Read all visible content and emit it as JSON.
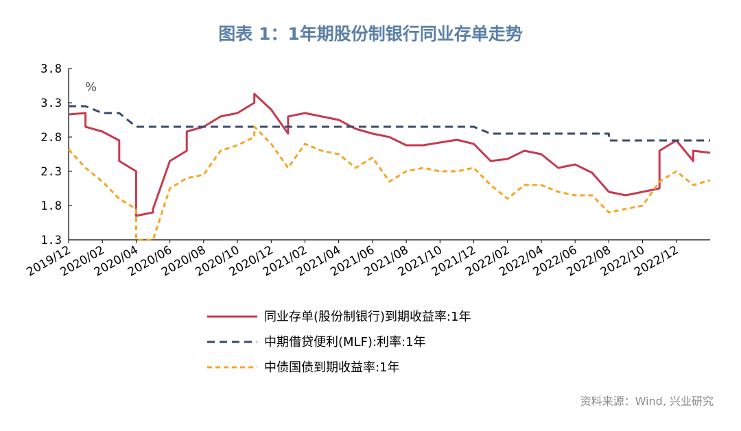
{
  "title": "图表 1：1年期股份制银行同业存单走势",
  "source": "资料来源：Wind, 兴业研究",
  "chart_data": {
    "type": "line",
    "unit_label": "%",
    "ylim": [
      1.3,
      3.8
    ],
    "yticks": [
      "3.8",
      "3.3",
      "2.8",
      "2.3",
      "1.8",
      "1.3"
    ],
    "x_tick_labels": [
      "2019/12",
      "2020/02",
      "2020/04",
      "2020/06",
      "2020/08",
      "2020/10",
      "2020/12",
      "2021/02",
      "2021/04",
      "2021/06",
      "2021/08",
      "2021/10",
      "2021/12",
      "2022/02",
      "2022/04",
      "2022/06",
      "2022/08",
      "2022/10",
      "2022/12"
    ],
    "x_start": "2019/12",
    "x_end": "2023/02",
    "legend_position": "bottom",
    "grid": false,
    "series": [
      {
        "name": "同业存单(股份制银行)到期收益率:1年",
        "color": "#c63a4f",
        "style": "solid",
        "points": [
          [
            "2019/12",
            3.13
          ],
          [
            "2020/01",
            3.15
          ],
          [
            "2020/01",
            2.95
          ],
          [
            "2020/02",
            2.88
          ],
          [
            "2020/03",
            2.75
          ],
          [
            "2020/03",
            2.45
          ],
          [
            "2020/04",
            2.3
          ],
          [
            "2020/04",
            1.65
          ],
          [
            "2020/05",
            1.7
          ],
          [
            "2020/05",
            1.75
          ],
          [
            "2020/06",
            2.45
          ],
          [
            "2020/07",
            2.6
          ],
          [
            "2020/07",
            2.88
          ],
          [
            "2020/08",
            2.95
          ],
          [
            "2020/09",
            3.1
          ],
          [
            "2020/10",
            3.15
          ],
          [
            "2020/11",
            3.3
          ],
          [
            "2020/11",
            3.43
          ],
          [
            "2020/12",
            3.2
          ],
          [
            "2021/01",
            2.85
          ],
          [
            "2021/01",
            3.1
          ],
          [
            "2021/02",
            3.15
          ],
          [
            "2021/03",
            3.1
          ],
          [
            "2021/04",
            3.05
          ],
          [
            "2021/05",
            2.92
          ],
          [
            "2021/06",
            2.85
          ],
          [
            "2021/07",
            2.8
          ],
          [
            "2021/08",
            2.68
          ],
          [
            "2021/09",
            2.68
          ],
          [
            "2021/10",
            2.72
          ],
          [
            "2021/11",
            2.76
          ],
          [
            "2021/12",
            2.7
          ],
          [
            "2022/01",
            2.45
          ],
          [
            "2022/02",
            2.48
          ],
          [
            "2022/03",
            2.6
          ],
          [
            "2022/04",
            2.55
          ],
          [
            "2022/05",
            2.35
          ],
          [
            "2022/06",
            2.4
          ],
          [
            "2022/07",
            2.28
          ],
          [
            "2022/08",
            2.0
          ],
          [
            "2022/09",
            1.95
          ],
          [
            "2022/10",
            2.0
          ],
          [
            "2022/11",
            2.05
          ],
          [
            "2022/11",
            2.6
          ],
          [
            "2022/12",
            2.75
          ],
          [
            "2023/01",
            2.45
          ],
          [
            "2023/01",
            2.6
          ],
          [
            "2023/02",
            2.57
          ]
        ]
      },
      {
        "name": "中期借贷便利(MLF):利率:1年",
        "color": "#3b4a6b",
        "style": "dashed",
        "points": [
          [
            "2019/12",
            3.25
          ],
          [
            "2020/01",
            3.25
          ],
          [
            "2020/02",
            3.15
          ],
          [
            "2020/03",
            3.15
          ],
          [
            "2020/04",
            2.95
          ],
          [
            "2021/12",
            2.95
          ],
          [
            "2022/01",
            2.85
          ],
          [
            "2022/08",
            2.85
          ],
          [
            "2022/08",
            2.75
          ],
          [
            "2023/02",
            2.75
          ]
        ]
      },
      {
        "name": "中债国债到期收益率:1年",
        "color": "#f5a623",
        "style": "dashed",
        "points": [
          [
            "2019/12",
            2.62
          ],
          [
            "2020/01",
            2.35
          ],
          [
            "2020/02",
            2.15
          ],
          [
            "2020/03",
            1.9
          ],
          [
            "2020/04",
            1.75
          ],
          [
            "2020/04",
            1.3
          ],
          [
            "2020/05",
            1.3
          ],
          [
            "2020/06",
            2.05
          ],
          [
            "2020/07",
            2.2
          ],
          [
            "2020/08",
            2.25
          ],
          [
            "2020/09",
            2.6
          ],
          [
            "2020/10",
            2.68
          ],
          [
            "2020/11",
            2.8
          ],
          [
            "2020/11",
            2.95
          ],
          [
            "2020/12",
            2.7
          ],
          [
            "2021/01",
            2.35
          ],
          [
            "2021/02",
            2.7
          ],
          [
            "2021/03",
            2.6
          ],
          [
            "2021/04",
            2.55
          ],
          [
            "2021/05",
            2.35
          ],
          [
            "2021/06",
            2.5
          ],
          [
            "2021/07",
            2.15
          ],
          [
            "2021/08",
            2.3
          ],
          [
            "2021/09",
            2.35
          ],
          [
            "2021/10",
            2.3
          ],
          [
            "2021/11",
            2.3
          ],
          [
            "2021/12",
            2.35
          ],
          [
            "2022/01",
            2.1
          ],
          [
            "2022/02",
            1.9
          ],
          [
            "2022/03",
            2.1
          ],
          [
            "2022/04",
            2.1
          ],
          [
            "2022/05",
            2.0
          ],
          [
            "2022/06",
            1.95
          ],
          [
            "2022/07",
            1.95
          ],
          [
            "2022/08",
            1.7
          ],
          [
            "2022/09",
            1.75
          ],
          [
            "2022/10",
            1.8
          ],
          [
            "2022/11",
            2.15
          ],
          [
            "2022/12",
            2.3
          ],
          [
            "2023/01",
            2.1
          ],
          [
            "2023/02",
            2.17
          ]
        ]
      }
    ]
  }
}
